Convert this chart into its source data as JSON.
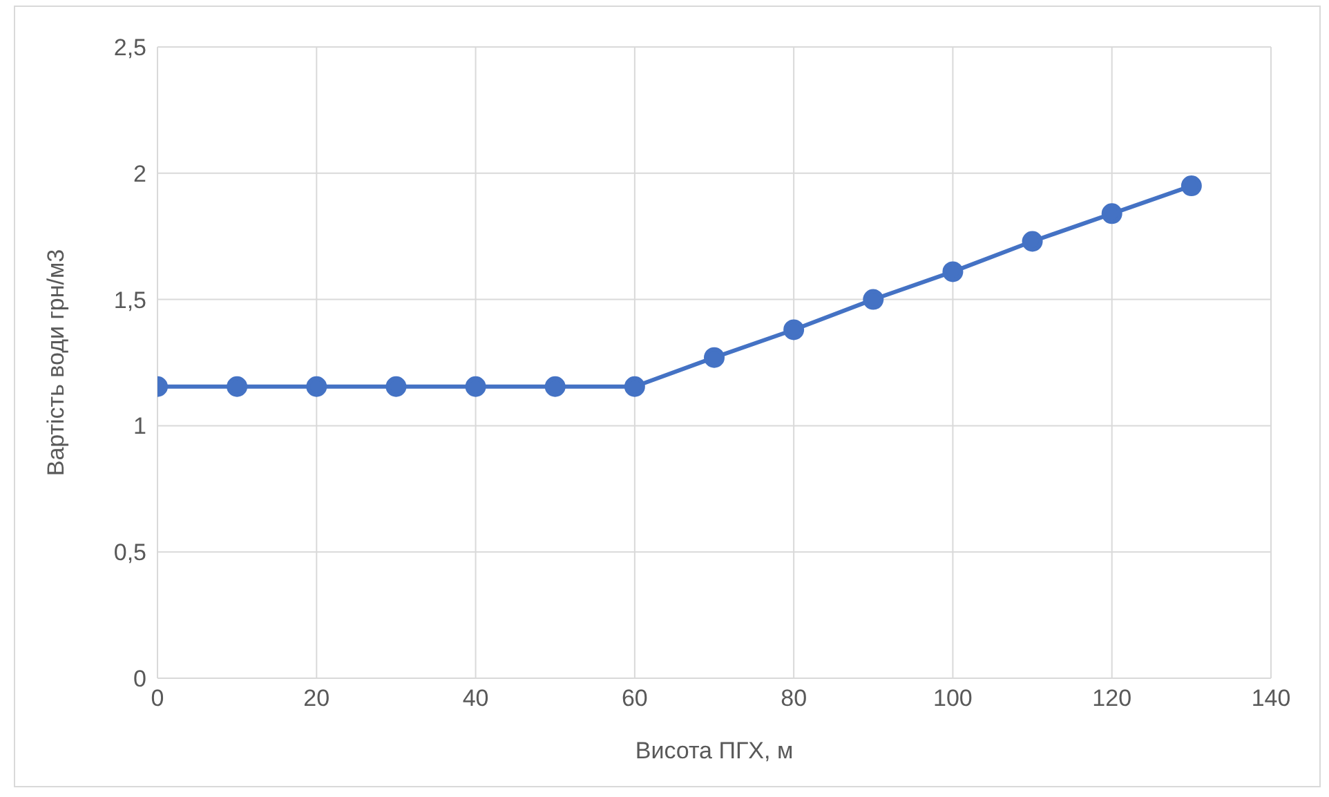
{
  "chart_data": {
    "type": "line",
    "xlabel": "Висота ПГХ, м",
    "ylabel": "Вартість води грн/м3",
    "x": [
      0,
      10,
      20,
      30,
      40,
      50,
      60,
      70,
      80,
      90,
      100,
      110,
      120,
      130
    ],
    "series": [
      {
        "color": "#4472c4",
        "values": [
          1.155,
          1.155,
          1.155,
          1.155,
          1.155,
          1.155,
          1.155,
          1.27,
          1.38,
          1.5,
          1.61,
          1.73,
          1.84,
          1.95
        ]
      }
    ],
    "xlim": [
      0,
      140
    ],
    "xticks": [
      0,
      20,
      40,
      60,
      80,
      100,
      120,
      140
    ],
    "ylim": [
      0,
      2.5
    ],
    "yticks": [
      0,
      {
        "value": 0.5,
        "label": "0,5"
      },
      1,
      {
        "value": 1.5,
        "label": "1,5"
      },
      2,
      {
        "value": 2.5,
        "label": "2,5"
      }
    ],
    "grid": true,
    "marker": "circle",
    "line_style": "solid"
  }
}
